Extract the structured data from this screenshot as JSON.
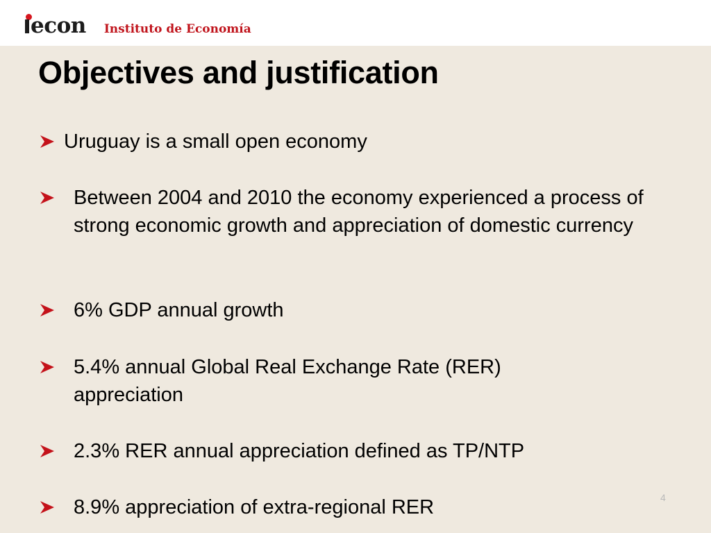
{
  "header": {
    "logo_text": "econ",
    "logo_dotted_letter": "i",
    "institute": "Instituto de Economía",
    "accent_color": "#c0141c"
  },
  "slide": {
    "title": "Objectives and justification",
    "bullet_icon": "arrow-bullet-icon",
    "bullet_color": "#c4121a",
    "bullets": [
      "Uruguay is a small open economy",
      "Between 2004 and 2010 the economy experienced a process of strong economic growth and appreciation of domestic currency",
      "6% GDP annual growth",
      "5.4%  annual Global Real Exchange Rate (RER) appreciation",
      "2.3% RER annual appreciation defined as TP/NTP",
      "8.9% appreciation of extra-regional RER"
    ],
    "page_number": "4"
  }
}
